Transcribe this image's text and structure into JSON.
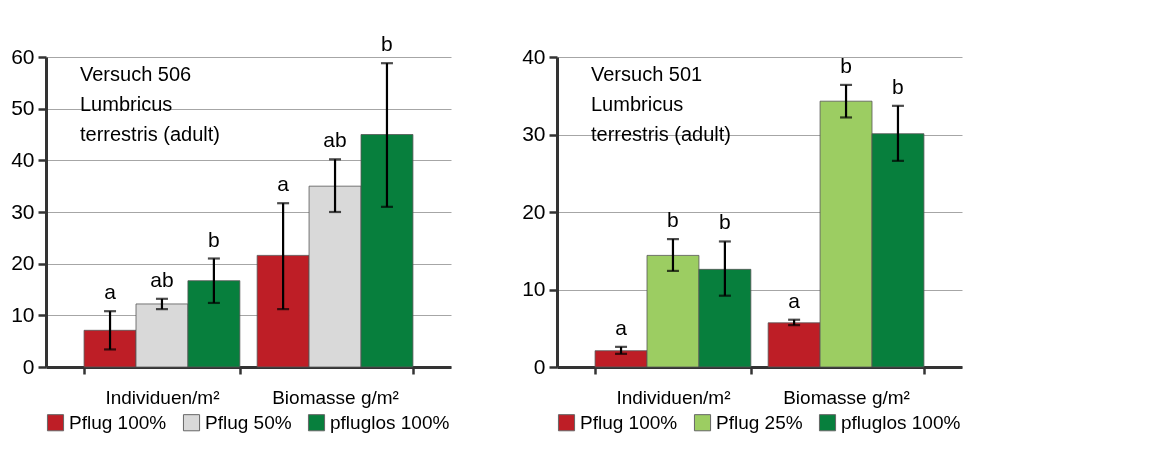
{
  "chart_data": [
    {
      "type": "bar",
      "categories": [
        "Individuen/m²",
        "Biomasse g/m²"
      ],
      "series": [
        {
          "name": "Pflug 100%",
          "color": "#be1e26",
          "values": [
            7.1,
            21.6
          ],
          "errors": [
            [
              3.4,
              10.8
            ],
            [
              11.2,
              31.7
            ]
          ]
        },
        {
          "name": "Pflug 50%",
          "color": "#d9d9d9",
          "values": [
            12.2,
            35
          ],
          "errors": [
            [
              11.2,
              13.2
            ],
            [
              30,
              40.2
            ]
          ]
        },
        {
          "name": "pfluglos 100%",
          "color": "#077f3d",
          "values": [
            16.7,
            45
          ],
          "errors": [
            [
              12.4,
              21
            ],
            [
              31,
              58.8
            ]
          ]
        }
      ],
      "ylim": [
        0,
        60
      ],
      "yticks": [
        0,
        10,
        20,
        30,
        40,
        50,
        60
      ],
      "grid": "y",
      "legend": "bottom",
      "annotations": [
        "Versuch 506\nLumbricus\nterrestris (adult)",
        "a",
        "ab",
        "b",
        "a",
        "ab",
        "b"
      ]
    },
    {
      "type": "bar",
      "categories": [
        "Individuen/m²",
        "Biomasse g/m²"
      ],
      "series": [
        {
          "name": "Pflug 100%",
          "color": "#be1e26",
          "values": [
            2.1,
            5.7
          ],
          "errors": [
            [
              1.7,
              2.6
            ],
            [
              5.4,
              6.1
            ]
          ]
        },
        {
          "name": "Pflug 25%",
          "color": "#9ccd62",
          "values": [
            14.4,
            34.3
          ],
          "errors": [
            [
              12.4,
              16.5
            ],
            [
              32.2,
              36.4
            ]
          ]
        },
        {
          "name": "pfluglos 100%",
          "color": "#077f3d",
          "values": [
            12.6,
            30.1
          ],
          "errors": [
            [
              9.2,
              16.2
            ],
            [
              26.6,
              33.7
            ]
          ]
        }
      ],
      "ylim": [
        0,
        40
      ],
      "yticks": [
        0,
        10,
        20,
        30,
        40
      ],
      "grid": "y",
      "legend": "bottom",
      "annotations": [
        "Versuch 501\nLumbricus\nterrestris (adult)",
        "a",
        "b",
        "b",
        "a",
        "b",
        "b"
      ]
    }
  ]
}
